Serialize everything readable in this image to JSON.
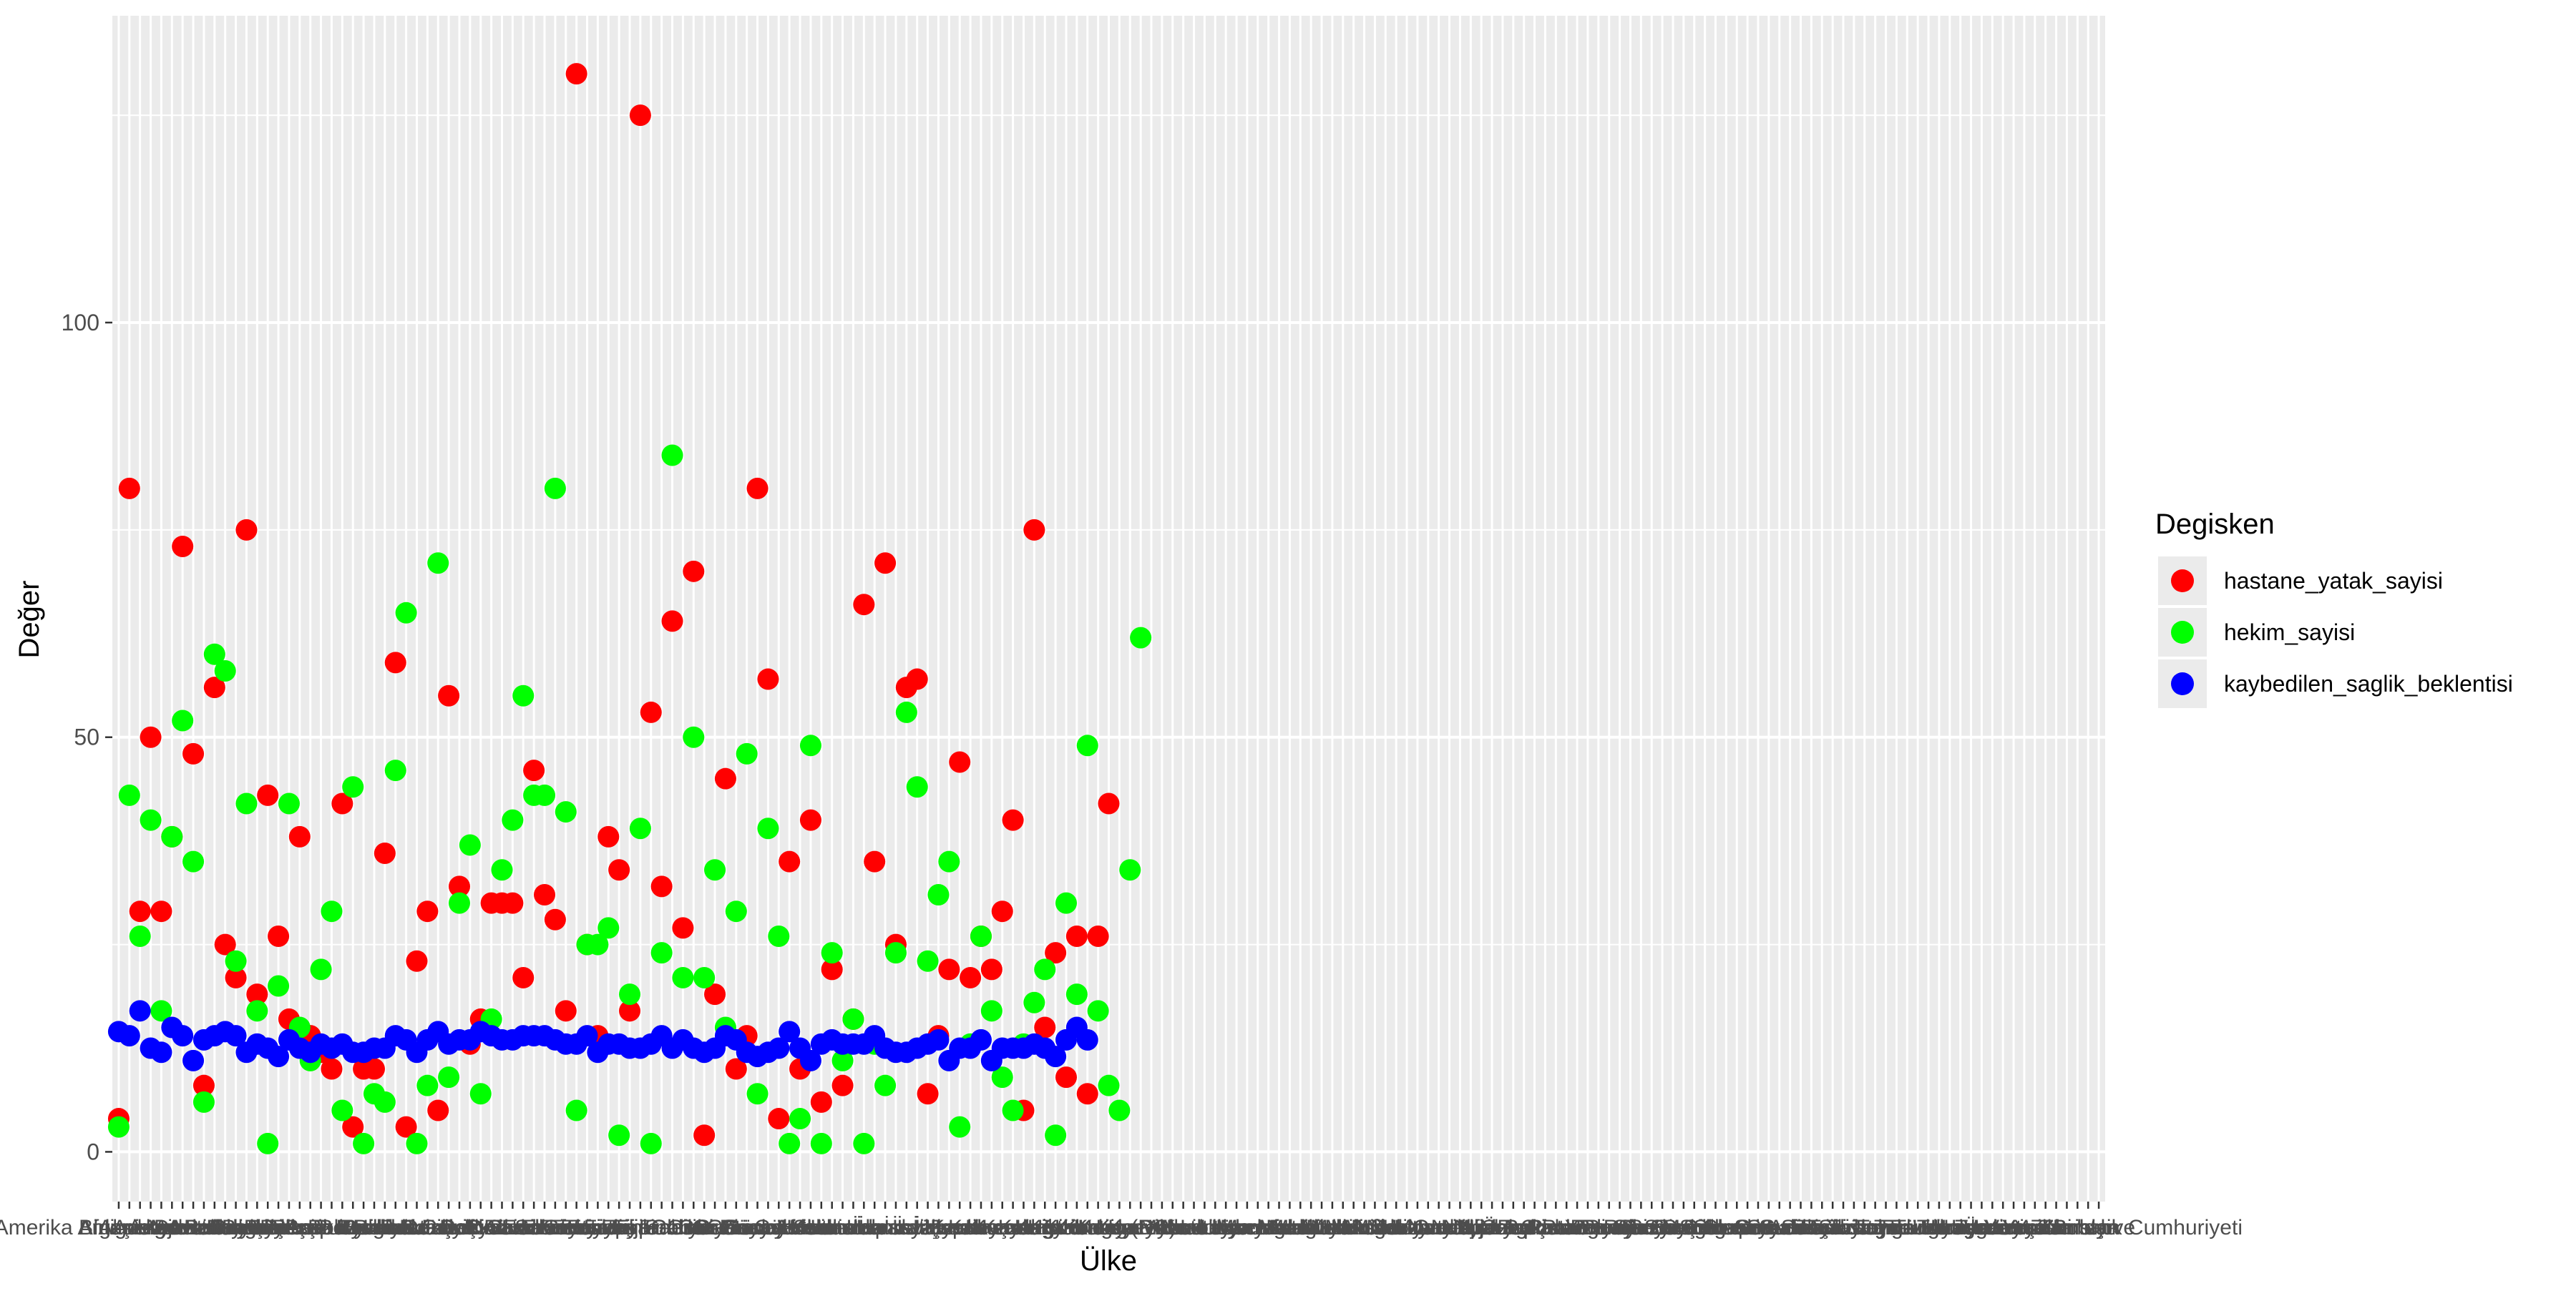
{
  "chart_data": {
    "type": "scatter",
    "xlabel": "Ülke",
    "ylabel": "Değer",
    "ylim": [
      -6,
      137
    ],
    "y_ticks": [
      0,
      50,
      100
    ],
    "legend": {
      "title": "Degisken",
      "position": "right"
    },
    "colors": {
      "panel_background": "#ebebeb",
      "grid": "#ffffff"
    },
    "categories": [
      "Amerika Birleşik Devletleri",
      "Afganistan",
      "Almanya",
      "Andorra",
      "Angola",
      "Antigua ve Barbuda",
      "Arjantin",
      "Arnavutluk",
      "Avustralya",
      "Avusturya",
      "Azerbaycan",
      "Bahamalar",
      "Bahreyn",
      "Bangladeş",
      "Barbados",
      "Belçika",
      "Belize",
      "Benin",
      "Beyaz Rusya",
      "Birleşik Arap Emirlikleri",
      "Birleşik Krallık",
      "Bolivya",
      "Bosna-Hersek",
      "Botsvana",
      "Brezilya",
      "Brunei",
      "Bulgaristan",
      "Burkina Faso",
      "Burundi",
      "Butan",
      "Cezayir",
      "Cibuti",
      "Çad",
      "Çekya",
      "Çin",
      "Danimarka",
      "Dominik Cumhuriyeti",
      "Dominika",
      "Ekvador",
      "Ekvator Ginesi",
      "El Salvador",
      "Endonezya",
      "Eritre",
      "Ermenistan",
      "Estonya",
      "Esvatini",
      "Etiyopya",
      "Fas",
      "Fiji",
      "Fildişi Sahili",
      "Filipinler",
      "Finlandiya",
      "Fransa",
      "Gabon",
      "Gambiya",
      "Gana",
      "Gine",
      "Gine-Bissau",
      "Grenada",
      "Guatemala",
      "Guyana",
      "Güney Afrika",
      "Güney Kore",
      "Güney Sudan",
      "Gürcistan",
      "Haiti",
      "Hindistan",
      "Hırvatistan",
      "Hollanda",
      "Honduras",
      "Irak",
      "İran",
      "İrlanda",
      "İspanya",
      "İsrail",
      "İsveç",
      "İsviçre",
      "İtalya",
      "İzlanda",
      "Jamaika",
      "Japonya",
      "Kamboçya",
      "Kamerun",
      "Kanada",
      "Karadağ",
      "Katar",
      "Kazakistan",
      "Kenya",
      "Kıbrıs",
      "Kırgızistan",
      "Kiribati",
      "Kolombiya",
      "Komorlar",
      "Kongo",
      "Kongo (DC)",
      "Kosta Rika",
      "Kuveyt",
      "Kuzey Kore",
      "Kuzey Makedonya",
      "Küba",
      "Laos",
      "Lesotho",
      "Letonya",
      "Liberya",
      "Libya",
      "Litvanya",
      "Lübnan",
      "Lüksemburg",
      "Macaristan",
      "Madagaskar",
      "Malavi",
      "Maldivler",
      "Malezya",
      "Mali",
      "Malta",
      "Marshall Adaları",
      "Mauritius",
      "Meksika",
      "Mısır",
      "Mikronezya",
      "Moğolistan",
      "Moldova",
      "Moritanya",
      "Mozambik",
      "Myanmar",
      "Namibya",
      "Nauru",
      "Nepal",
      "Nijer",
      "Nijerya",
      "Nikaragua",
      "Norveç",
      "Orta Afrika Cumhuriyeti",
      "Özbekistan",
      "Pakistan",
      "Palau",
      "Panama",
      "Papua Yeni Gine",
      "Paraguay",
      "Peru",
      "Polonya",
      "Portekiz",
      "Romanya",
      "Ruanda",
      "Rusya",
      "Samoa",
      "San Marino",
      "Senegal",
      "Seyşeller",
      "Sırbistan",
      "Sierra Leone",
      "Singapur",
      "Slovakya",
      "Slovenya",
      "Solomon Adaları",
      "Somali",
      "Sri Lanka",
      "Sudan",
      "Surinam",
      "Suriye",
      "Suudi Arabistan",
      "Şili",
      "Tacikistan",
      "Tanzanya",
      "Tayland",
      "Togo",
      "Tonga",
      "Trinidad ve Tobago",
      "Tunus",
      "Tuvalu",
      "Türkiye",
      "Türkmenistan",
      "Uganda",
      "Ukrayna",
      "Umman",
      "Uruguay",
      "Ürdün",
      "Vanuatu",
      "Venezuela",
      "Vietnam",
      "Yemen",
      "Yeni Zelanda",
      "Yeşil Burun",
      "Yunanistan",
      "Zambiya",
      "Zimbabve",
      "Tanzanya Birleşik Cumhuriyeti"
    ],
    "series": [
      {
        "name": "hastane_yatak_sayisi",
        "color": "#ff0000",
        "values": [
          4,
          80,
          29,
          50,
          29,
          38,
          73,
          48,
          8,
          56,
          25,
          21,
          75,
          19,
          43,
          26,
          16,
          38,
          14,
          12,
          10,
          42,
          3,
          10,
          10,
          36,
          59,
          3,
          23,
          29,
          5,
          55,
          32,
          13,
          16,
          30,
          30,
          30,
          21,
          46,
          31,
          28,
          17,
          130,
          25,
          14,
          38,
          34,
          17,
          125,
          53,
          32,
          64,
          27,
          70,
          2,
          19,
          45,
          10,
          14,
          80,
          57,
          4,
          35,
          10,
          40,
          6,
          22,
          8,
          16,
          66,
          35,
          71,
          25,
          56,
          57,
          7,
          14,
          22,
          47,
          21,
          26,
          22,
          29,
          40,
          5,
          75,
          15,
          24,
          9,
          26,
          7,
          26,
          42
        ]
      },
      {
        "name": "hekim_sayisi",
        "color": "#00ff00",
        "values": [
          3,
          43,
          26,
          40,
          17,
          38,
          52,
          35,
          6,
          60,
          58,
          23,
          42,
          17,
          1,
          20,
          42,
          15,
          11,
          22,
          29,
          5,
          44,
          1,
          7,
          6,
          46,
          65,
          1,
          8,
          71,
          9,
          30,
          37,
          7,
          16,
          34,
          40,
          55,
          43,
          43,
          80,
          41,
          5,
          25,
          25,
          27,
          2,
          19,
          39,
          1,
          24,
          84,
          21,
          50,
          21,
          34,
          15,
          29,
          48,
          7,
          39,
          26,
          1,
          4,
          49,
          1,
          24,
          11,
          16,
          1,
          13,
          8,
          24,
          53,
          44,
          23,
          31,
          35,
          3,
          13,
          26,
          17,
          9,
          5,
          13,
          18,
          22,
          2,
          30,
          19,
          49,
          17,
          8,
          5,
          34,
          62
        ]
      },
      {
        "name": "kaybedilen_saglik_beklentisi",
        "color": "#0000ff",
        "values": [
          14.5,
          14,
          17,
          12.5,
          12,
          15,
          14,
          11,
          13.5,
          14,
          14.5,
          14,
          12,
          13,
          12.5,
          11.5,
          13.5,
          12.5,
          12,
          13,
          12.5,
          13,
          12,
          12,
          12.5,
          12.5,
          14,
          13.5,
          12,
          13.5,
          14.5,
          13,
          13.5,
          13.5,
          14.5,
          14,
          13.5,
          13.5,
          14,
          14,
          14,
          13.5,
          13,
          13,
          14,
          12,
          13,
          13,
          12.5,
          12.5,
          13,
          14,
          12.5,
          13.5,
          12.5,
          12,
          12.5,
          14,
          13.5,
          12,
          11.5,
          12,
          12.5,
          14.5,
          12.5,
          11,
          13,
          13.5,
          13,
          13,
          13,
          14,
          12.5,
          12,
          12,
          12.5,
          13,
          13.5,
          11,
          12.5,
          12.5,
          13.5,
          11,
          12.5,
          12.5,
          12.5,
          13,
          12.5,
          11.5,
          13.5,
          15,
          13.5
        ]
      }
    ]
  }
}
